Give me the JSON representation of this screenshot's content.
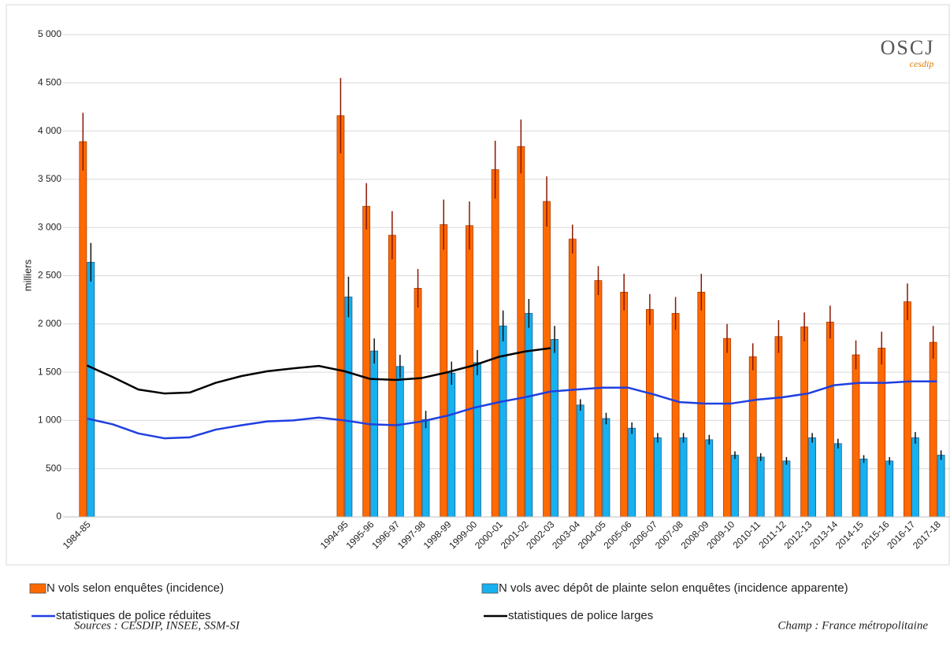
{
  "chart_data": {
    "type": "bar",
    "ylabel": "milliers",
    "logo": "OSCJ",
    "logo_subtitle": "cesdip",
    "source": "Sources : CESDIP, INSEE, SSM-SI",
    "note": "Champ : France métropolitaine",
    "categories": [
      "1984-85",
      null,
      null,
      null,
      null,
      null,
      null,
      null,
      null,
      null,
      "1994-95",
      "1995-96",
      "1996-97",
      "1997-98",
      "1998-99",
      "1999-00",
      "2000-01",
      "2001-02",
      "2002-03",
      "2003-04",
      "2004-05",
      "2005-06",
      "2006-07",
      "2007-08",
      "2008-09",
      "2009-10",
      "2010-11",
      "2011-12",
      "2012-13",
      "2013-14",
      "2014-15",
      "2015-16",
      "2016-17",
      "2017-18"
    ],
    "ylim": [
      0,
      5000
    ],
    "yticks": [
      0,
      500,
      {
        "value": 1000,
        "label": "1 000"
      },
      {
        "value": 1500,
        "label": "1 500"
      },
      {
        "value": 2000,
        "label": "2 000"
      },
      {
        "value": 2500,
        "label": "2 500"
      },
      {
        "value": 3000,
        "label": "3 000"
      },
      {
        "value": 3500,
        "label": "3 500"
      },
      {
        "value": 4000,
        "label": "4 000"
      },
      {
        "value": 4500,
        "label": "4 500"
      },
      {
        "value": 5000,
        "label": "5 000"
      }
    ],
    "grid": true,
    "legend": "bottom",
    "series": [
      {
        "name": "N vols  selon enquêtes (incidence)",
        "type": "bar",
        "color": "#ff6a00",
        "values": [
          3890,
          null,
          null,
          null,
          null,
          null,
          null,
          null,
          null,
          null,
          4160,
          3220,
          2920,
          2370,
          3030,
          3020,
          3600,
          3840,
          3270,
          2880,
          2450,
          2330,
          2150,
          2110,
          2330,
          1850,
          1660,
          1870,
          1970,
          2020,
          1680,
          1750,
          2230,
          1810
        ],
        "errors": [
          300,
          null,
          null,
          null,
          null,
          null,
          null,
          null,
          null,
          null,
          390,
          240,
          250,
          200,
          260,
          250,
          300,
          280,
          260,
          150,
          150,
          190,
          160,
          170,
          190,
          150,
          140,
          170,
          150,
          170,
          150,
          170,
          190,
          170
        ]
      },
      {
        "name": "N vols  avec dépôt de plainte selon enquêtes (incidence apparente)",
        "type": "bar",
        "color": "#17b1f0",
        "values": [
          2640,
          null,
          null,
          null,
          null,
          null,
          null,
          null,
          null,
          null,
          2280,
          1720,
          1560,
          1010,
          1490,
          1600,
          1980,
          2110,
          1840,
          1160,
          1020,
          920,
          820,
          820,
          800,
          640,
          620,
          580,
          820,
          760,
          600,
          580,
          820,
          640
        ],
        "errors": [
          200,
          null,
          null,
          null,
          null,
          null,
          null,
          null,
          null,
          null,
          210,
          130,
          120,
          90,
          120,
          130,
          160,
          150,
          140,
          60,
          60,
          60,
          50,
          50,
          50,
          40,
          40,
          40,
          50,
          50,
          40,
          40,
          60,
          50
        ]
      },
      {
        "name": "statistiques de police réduites",
        "type": "line",
        "color": "#1f3fe0",
        "values": [
          1020,
          960,
          865,
          815,
          825,
          905,
          950,
          990,
          1000,
          1030,
          1000,
          960,
          950,
          990,
          1050,
          1130,
          1190,
          1240,
          1300,
          1320,
          1340,
          1340,
          1270,
          1190,
          1175,
          1175,
          1215,
          1240,
          1280,
          1365,
          1390,
          1390,
          1405,
          1405
        ]
      },
      {
        "name": "statistiques de police larges",
        "type": "line",
        "color": "#000000",
        "values": [
          1570,
          1450,
          1320,
          1280,
          1290,
          1390,
          1460,
          1510,
          1540,
          1565,
          1510,
          1430,
          1420,
          1440,
          1500,
          1570,
          1660,
          1715,
          1750,
          null,
          null,
          null,
          null,
          null,
          null,
          null,
          null,
          null,
          null,
          null,
          null,
          null,
          null,
          null
        ]
      }
    ]
  }
}
